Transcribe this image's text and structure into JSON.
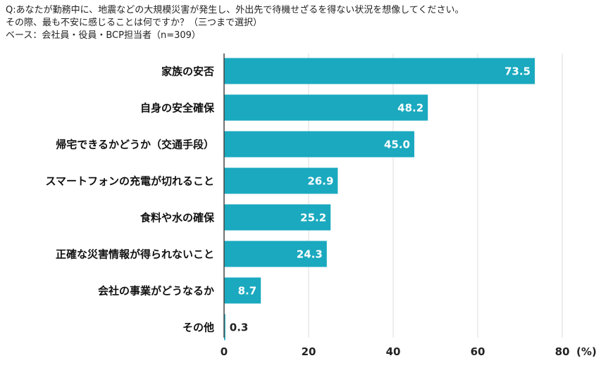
{
  "header": {
    "question_line1": "Q:あなたが勤務中に、地震などの大規模災害が発生し、外出先で待機せざるを得ない状況を想像してください。",
    "question_line2": "その際、最も不安に感じることは何ですか？（三つまで選択）",
    "base_line": "ベース：会社員・役員・BCP担当者（n=309）"
  },
  "chart_data": {
    "type": "bar",
    "orientation": "horizontal",
    "title": "",
    "categories": [
      "家族の安否",
      "自身の安全確保",
      "帰宅できるかどうか（交通手段）",
      "スマートフォンの充電が切れること",
      "食料や水の確保",
      "正確な災害情報が得られないこと",
      "会社の事業がどうなるか",
      "その他"
    ],
    "values": [
      73.5,
      48.2,
      45.0,
      26.9,
      25.2,
      24.3,
      8.7,
      0.3
    ],
    "value_labels": [
      "73.5",
      "48.2",
      "45.0",
      "26.9",
      "25.2",
      "24.3",
      "8.7",
      "0.3"
    ],
    "xlim": [
      0,
      80
    ],
    "xticks": [
      "0",
      "20",
      "40",
      "60",
      "80"
    ],
    "tick_values": [
      0,
      20,
      40,
      60,
      80
    ],
    "unit_label": "(%)",
    "grid": true,
    "colors": {
      "bar": "#1aa9bf",
      "grid": "#dedede",
      "axis": "#444444",
      "label_inside": "#ffffff",
      "label_outside": "#222222"
    }
  }
}
